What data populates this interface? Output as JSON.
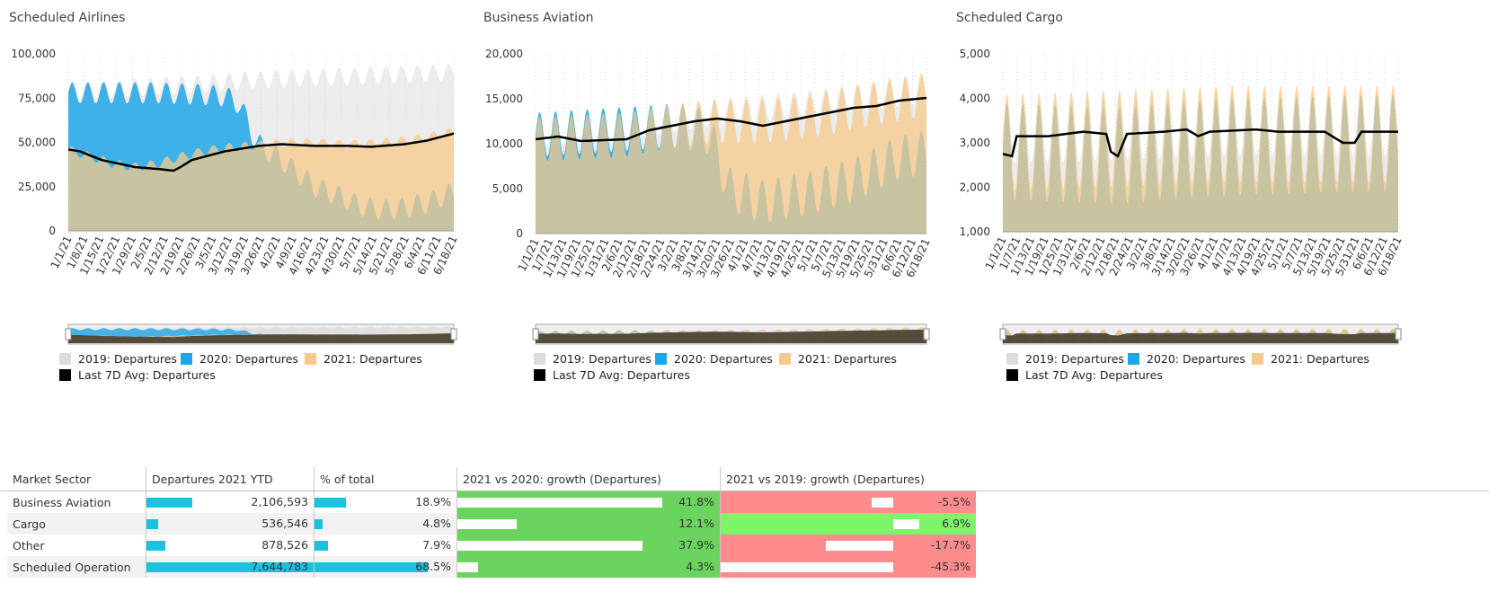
{
  "colors": {
    "c2019": "#dcdcdc",
    "c2020": "#1ea7e7",
    "c2021": "#f7c98a",
    "avg": "#000000"
  },
  "legend": {
    "l2019": "2019: Departures",
    "l2020": "2020: Departures",
    "l2021": "2021: Departures",
    "lavg": "Last 7D Avg: Departures"
  },
  "chart_data": [
    {
      "type": "area",
      "title": "Scheduled Airlines",
      "ylim": [
        0,
        100000
      ],
      "yticks": [
        "0",
        "25,000",
        "50,000",
        "75,000",
        "100,000"
      ],
      "xticks": [
        "1/1/21",
        "1/8/21",
        "1/15/21",
        "1/22/21",
        "1/29/21",
        "2/5/21",
        "2/12/21",
        "2/19/21",
        "2/26/21",
        "3/5/21",
        "3/12/21",
        "3/19/21",
        "3/26/21",
        "4/2/21",
        "4/9/21",
        "4/16/21",
        "4/23/21",
        "4/30/21",
        "5/7/21",
        "5/14/21",
        "5/21/21",
        "5/28/21",
        "6/4/21",
        "6/11/21",
        "6/18/21"
      ],
      "x_range": [
        0,
        172
      ],
      "series": [
        {
          "name": "2019: Departures",
          "points": [
            [
              0,
              78000
            ],
            [
              20,
              80000
            ],
            [
              40,
              82000
            ],
            [
              60,
              83000
            ],
            [
              80,
              85000
            ],
            [
              100,
              86000
            ],
            [
              120,
              87000
            ],
            [
              140,
              88000
            ],
            [
              160,
              89000
            ],
            [
              172,
              90000
            ]
          ],
          "weekly_amp": 5000
        },
        {
          "name": "2020: Departures",
          "points": [
            [
              0,
              78000
            ],
            [
              20,
              78000
            ],
            [
              40,
              78000
            ],
            [
              60,
              77000
            ],
            [
              70,
              76000
            ],
            [
              76,
              72000
            ],
            [
              80,
              62000
            ],
            [
              82,
              55000
            ],
            [
              84,
              50000
            ],
            [
              86,
              48000
            ],
            [
              88,
              46000
            ],
            [
              90,
              44000
            ],
            [
              93,
              42000
            ],
            [
              100,
              35000
            ],
            [
              110,
              25000
            ],
            [
              120,
              20000
            ],
            [
              130,
              14000
            ],
            [
              140,
              12000
            ],
            [
              150,
              13000
            ],
            [
              160,
              16000
            ],
            [
              172,
              22000
            ]
          ],
          "weekly_amp": 6000
        },
        {
          "name": "2021: Departures",
          "points": [
            [
              0,
              46000
            ],
            [
              10,
              42000
            ],
            [
              20,
              38000
            ],
            [
              30,
              36000
            ],
            [
              40,
              38000
            ],
            [
              50,
              42000
            ],
            [
              60,
              45000
            ],
            [
              70,
              47000
            ],
            [
              80,
              48000
            ],
            [
              90,
              49000
            ],
            [
              100,
              50000
            ],
            [
              110,
              50000
            ],
            [
              120,
              49000
            ],
            [
              130,
              49000
            ],
            [
              140,
              50000
            ],
            [
              150,
              51000
            ],
            [
              160,
              53000
            ],
            [
              172,
              56000
            ]
          ],
          "weekly_amp": 2500
        },
        {
          "name": "Last 7D Avg: Departures",
          "points": [
            [
              0,
              46000
            ],
            [
              5,
              45000
            ],
            [
              15,
              40000
            ],
            [
              30,
              36000
            ],
            [
              40,
              35000
            ],
            [
              47,
              34000
            ],
            [
              50,
              36000
            ],
            [
              55,
              40000
            ],
            [
              70,
              45000
            ],
            [
              85,
              48000
            ],
            [
              95,
              49000
            ],
            [
              110,
              48000
            ],
            [
              125,
              48000
            ],
            [
              135,
              47500
            ],
            [
              150,
              49000
            ],
            [
              160,
              51000
            ],
            [
              172,
              55000
            ]
          ]
        }
      ]
    },
    {
      "type": "area",
      "title": "Business Aviation",
      "ylim": [
        0,
        20000
      ],
      "yticks": [
        "0",
        "5,000",
        "10,000",
        "15,000",
        "20,000"
      ],
      "xticks": [
        "1/1/21",
        "1/7/21",
        "1/13/21",
        "1/19/21",
        "1/25/21",
        "1/31/21",
        "2/6/21",
        "2/12/21",
        "2/18/21",
        "2/24/21",
        "3/2/21",
        "3/8/21",
        "3/14/21",
        "3/20/21",
        "3/26/21",
        "4/1/21",
        "4/7/21",
        "4/13/21",
        "4/19/21",
        "4/25/21",
        "5/1/21",
        "5/7/21",
        "5/13/21",
        "5/19/21",
        "5/25/21",
        "5/31/21",
        "6/6/21",
        "6/12/21",
        "6/18/21"
      ],
      "x_range": [
        0,
        172
      ],
      "series": [
        {
          "name": "2019: Departures",
          "points": [
            [
              0,
              11000
            ],
            [
              40,
              12000
            ],
            [
              80,
              13500
            ],
            [
              120,
              14500
            ],
            [
              172,
              16000
            ]
          ],
          "weekly_amp": 1500
        },
        {
          "name": "2020: Departures",
          "points": [
            [
              0,
              11000
            ],
            [
              30,
              11500
            ],
            [
              60,
              12000
            ],
            [
              75,
              11500
            ],
            [
              80,
              9000
            ],
            [
              85,
              5000
            ],
            [
              100,
              3500
            ],
            [
              120,
              4500
            ],
            [
              140,
              6000
            ],
            [
              160,
              8500
            ],
            [
              172,
              9000
            ]
          ],
          "weekly_amp": 2500
        },
        {
          "name": "2021: Departures",
          "points": [
            [
              0,
              10500
            ],
            [
              40,
              11000
            ],
            [
              60,
              12000
            ],
            [
              80,
              12500
            ],
            [
              100,
              12500
            ],
            [
              120,
              13000
            ],
            [
              140,
              14000
            ],
            [
              160,
              15000
            ],
            [
              172,
              15500
            ]
          ],
          "weekly_amp": 2500
        },
        {
          "name": "Last 7D Avg: Departures",
          "points": [
            [
              0,
              10500
            ],
            [
              10,
              10800
            ],
            [
              20,
              10300
            ],
            [
              40,
              10500
            ],
            [
              50,
              11500
            ],
            [
              60,
              12000
            ],
            [
              70,
              12500
            ],
            [
              80,
              12800
            ],
            [
              90,
              12500
            ],
            [
              100,
              12000
            ],
            [
              110,
              12500
            ],
            [
              120,
              13000
            ],
            [
              130,
              13500
            ],
            [
              140,
              14000
            ],
            [
              150,
              14200
            ],
            [
              160,
              14800
            ],
            [
              172,
              15100
            ]
          ]
        }
      ]
    },
    {
      "type": "area",
      "title": "Scheduled Cargo",
      "ylim": [
        1000,
        5000
      ],
      "yticks": [
        "1,000",
        "2,000",
        "3,000",
        "4,000",
        "5,000"
      ],
      "xticks": [
        "1/1/21",
        "1/7/21",
        "1/13/21",
        "1/19/21",
        "1/25/21",
        "1/31/21",
        "2/6/21",
        "2/12/21",
        "2/18/21",
        "2/24/21",
        "3/2/21",
        "3/8/21",
        "3/14/21",
        "3/20/21",
        "3/26/21",
        "4/1/21",
        "4/7/21",
        "4/13/21",
        "4/19/21",
        "4/25/21",
        "5/1/21",
        "5/7/21",
        "5/13/21",
        "5/19/21",
        "5/25/21",
        "5/31/21",
        "6/6/21",
        "6/12/21",
        "6/18/21"
      ],
      "x_range": [
        0,
        172
      ],
      "series": [
        {
          "name": "2019: Departures",
          "points": [
            [
              0,
              3200
            ],
            [
              50,
              3300
            ],
            [
              100,
              3400
            ],
            [
              172,
              3400
            ]
          ],
          "weekly_amp": 700
        },
        {
          "name": "2020: Departures",
          "points": [
            [
              0,
              2800
            ],
            [
              50,
              2700
            ],
            [
              100,
              2900
            ],
            [
              172,
              3000
            ]
          ],
          "weekly_amp": 1100
        },
        {
          "name": "2021: Departures",
          "points": [
            [
              0,
              3000
            ],
            [
              50,
              3100
            ],
            [
              100,
              3200
            ],
            [
              172,
              3200
            ]
          ],
          "weekly_amp": 1100
        },
        {
          "name": "Last 7D Avg: Departures",
          "points": [
            [
              0,
              2750
            ],
            [
              4,
              2700
            ],
            [
              6,
              3150
            ],
            [
              20,
              3150
            ],
            [
              35,
              3250
            ],
            [
              45,
              3200
            ],
            [
              47,
              2800
            ],
            [
              50,
              2700
            ],
            [
              54,
              3200
            ],
            [
              70,
              3250
            ],
            [
              80,
              3300
            ],
            [
              85,
              3150
            ],
            [
              90,
              3250
            ],
            [
              110,
              3300
            ],
            [
              120,
              3250
            ],
            [
              140,
              3250
            ],
            [
              148,
              3000
            ],
            [
              153,
              3000
            ],
            [
              156,
              3250
            ],
            [
              172,
              3250
            ]
          ]
        }
      ]
    }
  ],
  "table": {
    "headers": [
      "Market Sector",
      "Departures 2021 YTD",
      "% of total",
      "2021 vs 2020: growth (Departures)",
      "2021 vs 2019: growth (Departures)"
    ],
    "rows": [
      {
        "name": "Business Aviation",
        "ytd": "2,106,593",
        "ytd_val": 2106593,
        "pct": "18.9%",
        "pct_val": 18.9,
        "g2020": "41.8%",
        "g2020_val": 41.8,
        "g2019": "-5.5%",
        "g2019_val": -5.5
      },
      {
        "name": "Cargo",
        "ytd": "536,546",
        "ytd_val": 536546,
        "pct": "4.8%",
        "pct_val": 4.8,
        "g2020": "12.1%",
        "g2020_val": 12.1,
        "g2019": "6.9%",
        "g2019_val": 6.9
      },
      {
        "name": "Other",
        "ytd": "878,526",
        "ytd_val": 878526,
        "pct": "7.9%",
        "pct_val": 7.9,
        "g2020": "37.9%",
        "g2020_val": 37.9,
        "g2019": "-17.7%",
        "g2019_val": -17.7
      },
      {
        "name": "Scheduled Operation",
        "ytd": "7,644,783",
        "ytd_val": 7644783,
        "pct": "68.5%",
        "pct_val": 68.5,
        "g2020": "4.3%",
        "g2020_val": 4.3,
        "g2019": "-45.3%",
        "g2019_val": -45.3
      }
    ]
  }
}
